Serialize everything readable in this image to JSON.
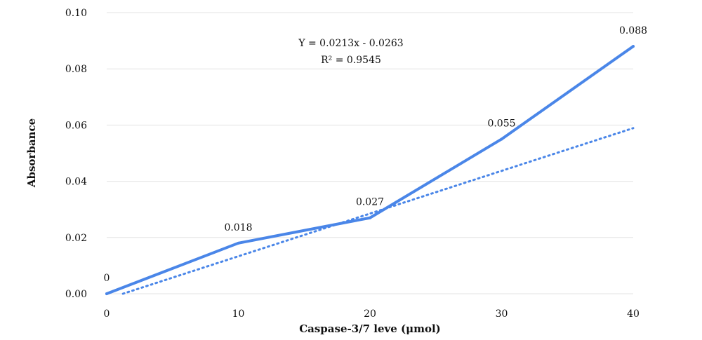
{
  "chart_data": {
    "type": "line",
    "title": "",
    "xlabel": "Caspase-3/7 leve (μmol)",
    "ylabel": "Absorbance",
    "x": [
      0,
      10,
      20,
      30,
      40
    ],
    "xlim": [
      0,
      40
    ],
    "ylim": [
      0,
      0.1
    ],
    "x_ticks": [
      "0",
      "10",
      "20",
      "30",
      "40"
    ],
    "y_ticks": [
      "0.00",
      "0.02",
      "0.04",
      "0.06",
      "0.08",
      "0.10"
    ],
    "grid": true,
    "series": [
      {
        "values": [
          0,
          0.018,
          0.027,
          0.055,
          0.088
        ],
        "data_labels": [
          "0",
          "0.018",
          "0.027",
          "0.055",
          "0.088"
        ],
        "color": "#4a86e8",
        "style": "solid"
      }
    ],
    "trendline": {
      "type": "linear",
      "slope": 0.0213,
      "intercept": -0.0263,
      "color": "#4a86e8",
      "style": "dotted",
      "equation": "Y = 0.0213x - 0.0263",
      "r_squared": "R² = 0.9545"
    }
  }
}
